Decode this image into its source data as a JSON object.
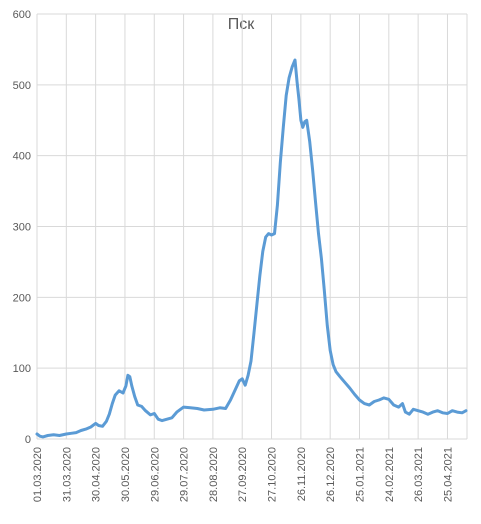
{
  "chart_data": {
    "type": "line",
    "title": "Пск",
    "xlabel": "",
    "ylabel": "",
    "ylim": [
      0,
      600
    ],
    "yticks": [
      0,
      100,
      200,
      300,
      400,
      500,
      600
    ],
    "grid": "vertical-and-horizontal",
    "legend": "none",
    "x_tick_labels": [
      "01.03.2020",
      "31.03.2020",
      "30.04.2020",
      "30.05.2020",
      "29.06.2020",
      "29.07.2020",
      "28.08.2020",
      "27.09.2020",
      "27.10.2020",
      "26.11.2020",
      "26.12.2020",
      "25.01.2021",
      "24.02.2021",
      "26.03.2021",
      "25.04.2021"
    ],
    "x_start": "2020-03-01",
    "x_end": "2021-05-15",
    "series": [
      {
        "color": "#5b9bd5",
        "points": [
          [
            "2020-03-01",
            7
          ],
          [
            "2020-03-04",
            4
          ],
          [
            "2020-03-07",
            3
          ],
          [
            "2020-03-12",
            5
          ],
          [
            "2020-03-18",
            6
          ],
          [
            "2020-03-24",
            5
          ],
          [
            "2020-03-31",
            7
          ],
          [
            "2020-04-05",
            8
          ],
          [
            "2020-04-10",
            9
          ],
          [
            "2020-04-15",
            12
          ],
          [
            "2020-04-20",
            14
          ],
          [
            "2020-04-25",
            17
          ],
          [
            "2020-04-30",
            22
          ],
          [
            "2020-05-03",
            19
          ],
          [
            "2020-05-07",
            18
          ],
          [
            "2020-05-11",
            25
          ],
          [
            "2020-05-14",
            35
          ],
          [
            "2020-05-17",
            50
          ],
          [
            "2020-05-20",
            62
          ],
          [
            "2020-05-24",
            68
          ],
          [
            "2020-05-28",
            65
          ],
          [
            "2020-05-31",
            75
          ],
          [
            "2020-06-02",
            90
          ],
          [
            "2020-06-04",
            88
          ],
          [
            "2020-06-06",
            75
          ],
          [
            "2020-06-09",
            60
          ],
          [
            "2020-06-12",
            48
          ],
          [
            "2020-06-16",
            46
          ],
          [
            "2020-06-20",
            40
          ],
          [
            "2020-06-25",
            34
          ],
          [
            "2020-06-29",
            36
          ],
          [
            "2020-07-03",
            28
          ],
          [
            "2020-07-07",
            26
          ],
          [
            "2020-07-12",
            28
          ],
          [
            "2020-07-17",
            30
          ],
          [
            "2020-07-22",
            38
          ],
          [
            "2020-07-29",
            45
          ],
          [
            "2020-08-05",
            44
          ],
          [
            "2020-08-12",
            43
          ],
          [
            "2020-08-19",
            41
          ],
          [
            "2020-08-28",
            42
          ],
          [
            "2020-09-04",
            44
          ],
          [
            "2020-09-10",
            43
          ],
          [
            "2020-09-15",
            55
          ],
          [
            "2020-09-20",
            70
          ],
          [
            "2020-09-24",
            82
          ],
          [
            "2020-09-27",
            85
          ],
          [
            "2020-09-30",
            76
          ],
          [
            "2020-10-03",
            90
          ],
          [
            "2020-10-06",
            110
          ],
          [
            "2020-10-09",
            150
          ],
          [
            "2020-10-12",
            190
          ],
          [
            "2020-10-15",
            230
          ],
          [
            "2020-10-18",
            265
          ],
          [
            "2020-10-21",
            285
          ],
          [
            "2020-10-24",
            290
          ],
          [
            "2020-10-27",
            288
          ],
          [
            "2020-10-30",
            290
          ],
          [
            "2020-11-02",
            330
          ],
          [
            "2020-11-05",
            390
          ],
          [
            "2020-11-08",
            440
          ],
          [
            "2020-11-11",
            485
          ],
          [
            "2020-11-14",
            510
          ],
          [
            "2020-11-17",
            525
          ],
          [
            "2020-11-20",
            535
          ],
          [
            "2020-11-22",
            505
          ],
          [
            "2020-11-24",
            480
          ],
          [
            "2020-11-26",
            450
          ],
          [
            "2020-11-28",
            440
          ],
          [
            "2020-11-30",
            448
          ],
          [
            "2020-12-02",
            450
          ],
          [
            "2020-12-05",
            420
          ],
          [
            "2020-12-08",
            380
          ],
          [
            "2020-12-11",
            335
          ],
          [
            "2020-12-14",
            290
          ],
          [
            "2020-12-17",
            255
          ],
          [
            "2020-12-20",
            210
          ],
          [
            "2020-12-23",
            160
          ],
          [
            "2020-12-26",
            125
          ],
          [
            "2020-12-29",
            105
          ],
          [
            "2021-01-01",
            95
          ],
          [
            "2021-01-05",
            88
          ],
          [
            "2021-01-10",
            80
          ],
          [
            "2021-01-15",
            72
          ],
          [
            "2021-01-20",
            63
          ],
          [
            "2021-01-25",
            55
          ],
          [
            "2021-01-30",
            50
          ],
          [
            "2021-02-04",
            48
          ],
          [
            "2021-02-09",
            53
          ],
          [
            "2021-02-14",
            55
          ],
          [
            "2021-02-19",
            58
          ],
          [
            "2021-02-24",
            56
          ],
          [
            "2021-03-01",
            48
          ],
          [
            "2021-03-06",
            45
          ],
          [
            "2021-03-10",
            50
          ],
          [
            "2021-03-13",
            38
          ],
          [
            "2021-03-17",
            35
          ],
          [
            "2021-03-21",
            42
          ],
          [
            "2021-03-26",
            40
          ],
          [
            "2021-03-31",
            38
          ],
          [
            "2021-04-05",
            35
          ],
          [
            "2021-04-10",
            38
          ],
          [
            "2021-04-15",
            40
          ],
          [
            "2021-04-20",
            37
          ],
          [
            "2021-04-25",
            36
          ],
          [
            "2021-04-30",
            40
          ],
          [
            "2021-05-05",
            38
          ],
          [
            "2021-05-10",
            37
          ],
          [
            "2021-05-14",
            40
          ]
        ]
      }
    ]
  }
}
